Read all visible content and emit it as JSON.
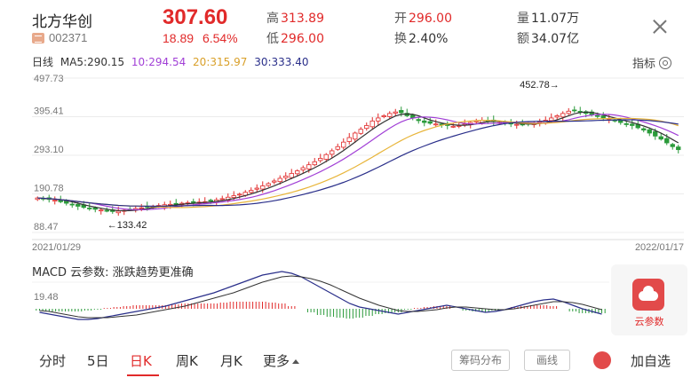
{
  "header": {
    "name": "北方华创",
    "code": "002371",
    "price": "307.60",
    "change": "18.89",
    "change_pct": "6.54%",
    "high_label": "高",
    "high": "313.89",
    "low_label": "低",
    "low": "296.00",
    "open_label": "开",
    "open": "296.00",
    "turnover_label": "换",
    "turnover": "2.40%",
    "volume_label": "量",
    "volume": "11.07万",
    "amount_label": "额",
    "amount": "34.07亿"
  },
  "ma_bar": {
    "period": "日线",
    "ma5": "MA5:290.15",
    "ma10": "10:294.54",
    "ma20": "20:315.97",
    "ma30": "30:333.40",
    "indicator_label": "指标"
  },
  "colors": {
    "up": "#e12a2a",
    "down": "#2a9a3a",
    "ma5": "#333333",
    "ma10": "#a13fd6",
    "ma20": "#e8b53a",
    "ma30": "#2a2f8a"
  },
  "chart_data": {
    "type": "candlestick",
    "y_ticks": [
      "497.73",
      "395.41",
      "293.10",
      "190.78",
      "88.47"
    ],
    "ylim": [
      88.47,
      497.73
    ],
    "x_start_label": "2021/01/29",
    "x_end_label": "2022/01/17",
    "annotations": {
      "low": "←133.42",
      "high": "452.78→"
    },
    "close": [
      180,
      178,
      176,
      174,
      170,
      166,
      162,
      158,
      155,
      152,
      150,
      148,
      146,
      144,
      145,
      147,
      150,
      152,
      154,
      156,
      158,
      160,
      162,
      163,
      165,
      166,
      167,
      168,
      169,
      170,
      172,
      175,
      178,
      182,
      186,
      190,
      195,
      200,
      206,
      212,
      218,
      225,
      232,
      238,
      245,
      252,
      260,
      268,
      276,
      285,
      295,
      305,
      316,
      328,
      340,
      352,
      362,
      372,
      384,
      392,
      398,
      404,
      408,
      406,
      398,
      392,
      385,
      380,
      378,
      376,
      374,
      372,
      370,
      372,
      376,
      380,
      384,
      386,
      384,
      382,
      380,
      378,
      376,
      375,
      374,
      376,
      378,
      382,
      386,
      392,
      398,
      404,
      410,
      412,
      408,
      404,
      400,
      396,
      392,
      388,
      384,
      380,
      376,
      372,
      366,
      360,
      352,
      344,
      336,
      326,
      316,
      308
    ],
    "macd_label": "MACD 云参数: 涨跌趋势更准确",
    "macd_tick": "19.48",
    "macd_dif": [
      -4,
      -6,
      -8,
      -10,
      -12,
      -12,
      -11,
      -9,
      -7,
      -5,
      -3,
      -1,
      1,
      3,
      6,
      9,
      12,
      15,
      18,
      22,
      26,
      30,
      34,
      38,
      40,
      42,
      40,
      36,
      30,
      24,
      18,
      12,
      6,
      2,
      0,
      -2,
      -4,
      -6,
      -4,
      -2,
      0,
      2,
      4,
      2,
      0,
      -2,
      -4,
      -3,
      -1,
      2,
      5,
      8,
      10,
      11,
      8,
      4,
      0,
      -3,
      -6
    ],
    "macd_dea": [
      -2,
      -3,
      -5,
      -7,
      -9,
      -10,
      -10,
      -10,
      -9,
      -8,
      -7,
      -5,
      -3,
      -1,
      1,
      3,
      6,
      9,
      12,
      15,
      18,
      22,
      26,
      30,
      33,
      36,
      37,
      36,
      34,
      31,
      27,
      22,
      17,
      12,
      8,
      4,
      1,
      -2,
      -3,
      -3,
      -2,
      -1,
      1,
      2,
      2,
      1,
      0,
      -1,
      -1,
      0,
      2,
      4,
      6,
      8,
      8,
      7,
      5,
      2,
      -1
    ],
    "macd_hist": [
      -4,
      -6,
      -6,
      -6,
      -6,
      -4,
      -2,
      2,
      4,
      6,
      8,
      8,
      8,
      8,
      10,
      12,
      12,
      12,
      12,
      14,
      16,
      16,
      16,
      16,
      14,
      12,
      6,
      0,
      -8,
      -14,
      -18,
      -20,
      -22,
      -20,
      -16,
      -12,
      -10,
      -8,
      -2,
      2,
      4,
      6,
      6,
      0,
      -4,
      -6,
      -8,
      -4,
      0,
      4,
      6,
      8,
      8,
      6,
      0,
      -6,
      -10,
      -10,
      -10
    ]
  },
  "side_card": {
    "label": "云参数"
  },
  "tabs": [
    "分时",
    "5日",
    "日K",
    "周K",
    "月K",
    "更多"
  ],
  "buttons": {
    "chips": "筹码分布",
    "draw": "画线",
    "add_watch": "加自选"
  }
}
